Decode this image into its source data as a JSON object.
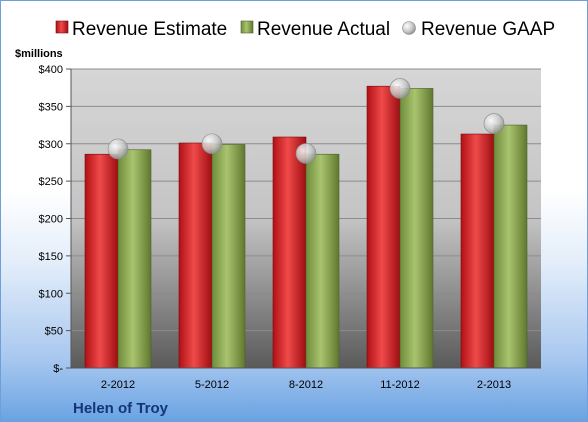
{
  "chart_data": {
    "type": "bar",
    "company": "Helen of Troy",
    "units_label": "$millions",
    "categories": [
      "2-2012",
      "5-2012",
      "8-2012",
      "11-2012",
      "2-2013"
    ],
    "series": [
      {
        "name": "Revenue Estimate",
        "type": "bar",
        "color": "#c4161c",
        "values": [
          286,
          301,
          309,
          377,
          313
        ]
      },
      {
        "name": "Revenue Actual",
        "type": "bar",
        "color": "#8aaa4f",
        "values": [
          292,
          299,
          286,
          374,
          325
        ]
      },
      {
        "name": "Revenue GAAP",
        "type": "marker",
        "color": "#b8b8b8",
        "values": [
          293,
          300,
          287,
          374,
          327
        ]
      }
    ],
    "ylim": [
      0,
      400
    ],
    "y_ticks": [
      {
        "value": 0,
        "label": "$-"
      },
      {
        "value": 50,
        "label": "$50"
      },
      {
        "value": 100,
        "label": "$100"
      },
      {
        "value": 150,
        "label": "$150"
      },
      {
        "value": 200,
        "label": "$200"
      },
      {
        "value": 250,
        "label": "$250"
      },
      {
        "value": 300,
        "label": "$300"
      },
      {
        "value": 350,
        "label": "$350"
      },
      {
        "value": 400,
        "label": "$400"
      }
    ],
    "grid": true,
    "legend_position": "top"
  }
}
